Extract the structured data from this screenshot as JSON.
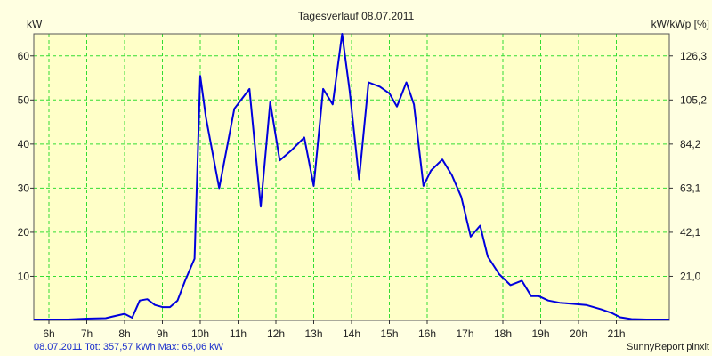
{
  "chart_data": {
    "type": "line",
    "title": "Tagesverlauf 08.07.2011",
    "ylabel_left": "kW",
    "ylabel_right": "kW/kWp [%]",
    "x_ticks": [
      "6h",
      "7h",
      "8h",
      "9h",
      "10h",
      "11h",
      "12h",
      "13h",
      "14h",
      "15h",
      "16h",
      "17h",
      "18h",
      "19h",
      "20h",
      "21h"
    ],
    "y_ticks_left": [
      "10",
      "20",
      "30",
      "40",
      "50",
      "60"
    ],
    "y_ticks_right": [
      "21,0",
      "42,1",
      "63,1",
      "84,2",
      "105,2",
      "126,3"
    ],
    "xlim": [
      5.6,
      22.4
    ],
    "ylim": [
      0,
      65
    ],
    "grid": true,
    "colors": {
      "line": "#0000dd",
      "grid": "#33dd33",
      "plot_bg": "#ffffc8",
      "page_bg": "#ffffe1"
    },
    "series": [
      {
        "x": [
          5.6,
          6.5,
          7.0,
          7.5,
          7.75,
          8.0,
          8.2,
          8.4,
          8.6,
          8.8,
          9.0,
          9.2,
          9.4,
          9.6,
          9.85,
          10.0,
          10.15,
          10.5,
          10.9,
          11.3,
          11.6,
          11.85,
          12.1,
          12.4,
          12.75,
          13.0,
          13.25,
          13.5,
          13.75,
          13.95,
          14.2,
          14.45,
          14.75,
          15.0,
          15.2,
          15.45,
          15.65,
          15.9,
          16.1,
          16.4,
          16.65,
          16.9,
          17.15,
          17.4,
          17.6,
          17.9,
          18.2,
          18.5,
          18.75,
          18.95,
          19.2,
          19.5,
          19.8,
          20.2,
          20.6,
          20.9,
          21.1,
          21.4,
          21.8,
          22.4
        ],
        "y": [
          0.2,
          0.2,
          0.4,
          0.5,
          1.0,
          1.5,
          0.6,
          4.5,
          4.8,
          3.5,
          3.0,
          3.0,
          4.5,
          9.0,
          14.0,
          55.5,
          46.0,
          30.0,
          48.0,
          52.5,
          25.8,
          49.5,
          36.3,
          38.5,
          41.5,
          30.5,
          52.5,
          49.0,
          65.0,
          52.0,
          32.0,
          54.0,
          53.0,
          51.5,
          48.5,
          54.0,
          49.0,
          30.5,
          34.0,
          36.5,
          33.0,
          28.0,
          19.0,
          21.5,
          14.5,
          10.5,
          8.0,
          9.0,
          5.5,
          5.5,
          4.5,
          4.0,
          3.8,
          3.5,
          2.5,
          1.6,
          0.7,
          0.3,
          0.2,
          0.2
        ]
      }
    ]
  },
  "footer": {
    "left": "08.07.2011 Tot: 357,57 kWh Max: 65,06 kW",
    "right": "SunnyReport pinxit"
  }
}
